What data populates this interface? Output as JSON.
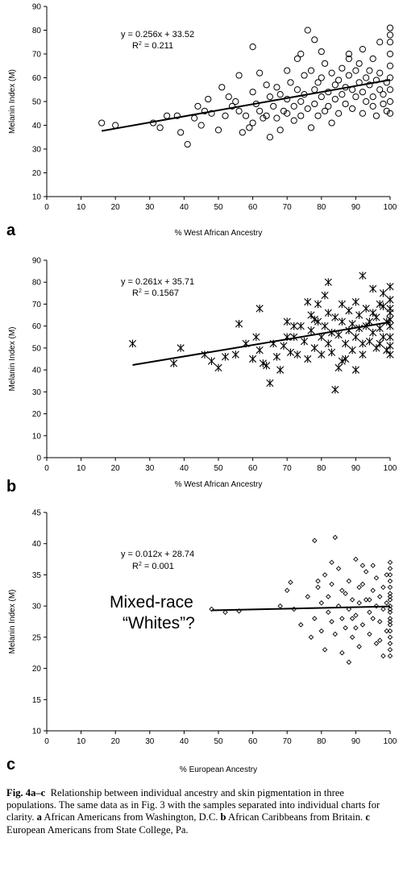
{
  "caption": {
    "figure_label": "Fig. 4a–c",
    "text_1": "Relationship between individual ancestry and skin pigmentation in three populations. The same data as in Fig. 3 with the samples separated into individual charts for clarity. ",
    "a_label": "a",
    "a_text": "African Americans from Washington, D.C. ",
    "b_label": "b",
    "b_text": "African Caribbeans from Britain. ",
    "c_label": "c",
    "c_text": "European Americans from State College, Pa."
  },
  "chart_data": [
    {
      "panel": "a",
      "type": "scatter",
      "marker": "circle",
      "xlabel": "% West African Ancestry",
      "ylabel": "Melanin Index (M)",
      "xlim": [
        0,
        100
      ],
      "ylim": [
        10,
        90
      ],
      "xticks": [
        0,
        10,
        20,
        30,
        40,
        50,
        60,
        70,
        80,
        90,
        100
      ],
      "yticks": [
        10,
        20,
        30,
        40,
        50,
        60,
        70,
        80,
        90
      ],
      "equation": "y = 0.256x + 33.52",
      "r2_prefix": "R",
      "r2_sup": "2",
      "r2_value": " = 0.211",
      "trend": {
        "slope": 0.256,
        "intercept": 33.52,
        "x_range": [
          16,
          100
        ]
      },
      "points": [
        [
          16,
          41
        ],
        [
          20,
          40
        ],
        [
          31,
          41
        ],
        [
          33,
          39
        ],
        [
          35,
          44
        ],
        [
          38,
          44
        ],
        [
          39,
          37
        ],
        [
          41,
          32
        ],
        [
          43,
          43
        ],
        [
          44,
          48
        ],
        [
          45,
          40
        ],
        [
          46,
          46
        ],
        [
          47,
          51
        ],
        [
          48,
          45
        ],
        [
          50,
          38
        ],
        [
          51,
          56
        ],
        [
          52,
          44
        ],
        [
          53,
          52
        ],
        [
          54,
          48
        ],
        [
          55,
          50
        ],
        [
          56,
          46
        ],
        [
          57,
          37
        ],
        [
          58,
          44
        ],
        [
          59,
          39
        ],
        [
          60,
          54
        ],
        [
          60,
          41
        ],
        [
          61,
          49
        ],
        [
          62,
          46
        ],
        [
          63,
          43
        ],
        [
          64,
          57
        ],
        [
          64,
          44
        ],
        [
          65,
          52
        ],
        [
          66,
          48
        ],
        [
          67,
          56
        ],
        [
          67,
          43
        ],
        [
          68,
          53
        ],
        [
          69,
          46
        ],
        [
          70,
          51
        ],
        [
          70,
          45
        ],
        [
          71,
          58
        ],
        [
          72,
          48
        ],
        [
          72,
          42
        ],
        [
          73,
          55
        ],
        [
          73,
          68
        ],
        [
          74,
          50
        ],
        [
          74,
          44
        ],
        [
          75,
          61
        ],
        [
          75,
          53
        ],
        [
          76,
          47
        ],
        [
          77,
          63
        ],
        [
          77,
          39
        ],
        [
          78,
          55
        ],
        [
          78,
          49
        ],
        [
          79,
          58
        ],
        [
          79,
          44
        ],
        [
          80,
          52
        ],
        [
          80,
          60
        ],
        [
          81,
          46
        ],
        [
          81,
          66
        ],
        [
          82,
          54
        ],
        [
          82,
          48
        ],
        [
          83,
          62
        ],
        [
          83,
          41
        ],
        [
          84,
          57
        ],
        [
          84,
          51
        ],
        [
          85,
          59
        ],
        [
          85,
          45
        ],
        [
          86,
          64
        ],
        [
          86,
          53
        ],
        [
          87,
          56
        ],
        [
          87,
          49
        ],
        [
          88,
          61
        ],
        [
          88,
          68
        ],
        [
          89,
          55
        ],
        [
          89,
          47
        ],
        [
          90,
          63
        ],
        [
          90,
          52
        ],
        [
          91,
          58
        ],
        [
          91,
          66
        ],
        [
          92,
          54
        ],
        [
          92,
          45
        ],
        [
          93,
          60
        ],
        [
          93,
          50
        ],
        [
          94,
          57
        ],
        [
          94,
          63
        ],
        [
          95,
          52
        ],
        [
          95,
          48
        ],
        [
          96,
          59
        ],
        [
          96,
          44
        ],
        [
          97,
          55
        ],
        [
          97,
          62
        ],
        [
          98,
          53
        ],
        [
          98,
          49
        ],
        [
          99,
          58
        ],
        [
          99,
          46
        ],
        [
          100,
          60
        ],
        [
          100,
          55
        ],
        [
          100,
          65
        ],
        [
          100,
          50
        ],
        [
          100,
          70
        ],
        [
          100,
          45
        ],
        [
          100,
          75
        ],
        [
          100,
          81
        ],
        [
          60,
          73
        ],
        [
          68,
          38
        ],
        [
          76,
          80
        ],
        [
          78,
          76
        ],
        [
          62,
          62
        ],
        [
          56,
          61
        ],
        [
          65,
          35
        ],
        [
          70,
          63
        ],
        [
          74,
          70
        ],
        [
          80,
          71
        ],
        [
          88,
          70
        ],
        [
          92,
          72
        ],
        [
          95,
          68
        ],
        [
          97,
          75
        ],
        [
          100,
          78
        ]
      ]
    },
    {
      "panel": "b",
      "type": "scatter",
      "marker": "asterisk",
      "xlabel": "% West African Ancestry",
      "ylabel": "Melanin Index (M)",
      "xlim": [
        0,
        100
      ],
      "ylim": [
        0,
        90
      ],
      "xticks": [
        0,
        10,
        20,
        30,
        40,
        50,
        60,
        70,
        80,
        90,
        100
      ],
      "yticks": [
        0,
        10,
        20,
        30,
        40,
        50,
        60,
        70,
        80,
        90
      ],
      "equation": "y = 0.261x + 35.71",
      "r2_prefix": "R",
      "r2_sup": "2",
      "r2_value": " = 0.1567",
      "trend": {
        "slope": 0.261,
        "intercept": 35.71,
        "x_range": [
          25,
          100
        ]
      },
      "points": [
        [
          25,
          52
        ],
        [
          37,
          43
        ],
        [
          39,
          50
        ],
        [
          46,
          47
        ],
        [
          48,
          44
        ],
        [
          50,
          41
        ],
        [
          52,
          46
        ],
        [
          55,
          47
        ],
        [
          56,
          61
        ],
        [
          58,
          52
        ],
        [
          60,
          45
        ],
        [
          61,
          55
        ],
        [
          62,
          68
        ],
        [
          62,
          49
        ],
        [
          63,
          43
        ],
        [
          64,
          42
        ],
        [
          65,
          34
        ],
        [
          66,
          52
        ],
        [
          67,
          46
        ],
        [
          68,
          40
        ],
        [
          69,
          51
        ],
        [
          70,
          62
        ],
        [
          71,
          48
        ],
        [
          72,
          55
        ],
        [
          73,
          47
        ],
        [
          74,
          60
        ],
        [
          75,
          53
        ],
        [
          76,
          45
        ],
        [
          77,
          65
        ],
        [
          77,
          58
        ],
        [
          78,
          50
        ],
        [
          79,
          70
        ],
        [
          79,
          62
        ],
        [
          80,
          55
        ],
        [
          80,
          47
        ],
        [
          81,
          74
        ],
        [
          81,
          60
        ],
        [
          82,
          52
        ],
        [
          82,
          66
        ],
        [
          83,
          57
        ],
        [
          83,
          48
        ],
        [
          84,
          64
        ],
        [
          84,
          31
        ],
        [
          85,
          56
        ],
        [
          85,
          41
        ],
        [
          86,
          62
        ],
        [
          86,
          70
        ],
        [
          87,
          52
        ],
        [
          87,
          45
        ],
        [
          88,
          67
        ],
        [
          88,
          58
        ],
        [
          89,
          61
        ],
        [
          89,
          49
        ],
        [
          90,
          71
        ],
        [
          90,
          55
        ],
        [
          91,
          65
        ],
        [
          91,
          59
        ],
        [
          92,
          83
        ],
        [
          92,
          47
        ],
        [
          93,
          60
        ],
        [
          93,
          68
        ],
        [
          94,
          53
        ],
        [
          94,
          62
        ],
        [
          95,
          77
        ],
        [
          95,
          57
        ],
        [
          96,
          64
        ],
        [
          96,
          50
        ],
        [
          97,
          70
        ],
        [
          97,
          59
        ],
        [
          98,
          55
        ],
        [
          98,
          75
        ],
        [
          99,
          62
        ],
        [
          99,
          49
        ],
        [
          100,
          78
        ],
        [
          100,
          72
        ],
        [
          100,
          66
        ],
        [
          100,
          60
        ],
        [
          100,
          55
        ],
        [
          100,
          51
        ],
        [
          100,
          47
        ],
        [
          100,
          68
        ],
        [
          100,
          63
        ],
        [
          82,
          80
        ],
        [
          76,
          71
        ],
        [
          70,
          55
        ],
        [
          72,
          60
        ],
        [
          78,
          63
        ],
        [
          86,
          44
        ],
        [
          90,
          40
        ],
        [
          92,
          52
        ],
        [
          95,
          66
        ],
        [
          97,
          52
        ],
        [
          98,
          69
        ]
      ]
    },
    {
      "panel": "c",
      "type": "scatter",
      "marker": "diamond",
      "xlabel": "% European Ancestry",
      "ylabel": "Melanin Index (M)",
      "xlim": [
        0,
        100
      ],
      "ylim": [
        10,
        45
      ],
      "xticks": [
        0,
        10,
        20,
        30,
        40,
        50,
        60,
        70,
        80,
        90,
        100
      ],
      "yticks": [
        10,
        15,
        20,
        25,
        30,
        35,
        40,
        45
      ],
      "equation": "y = 0.012x + 28.74",
      "r2_prefix": "R",
      "r2_sup": "2",
      "r2_value": " = 0.001",
      "annotation_line1": "Mixed-race",
      "annotation_line2": "“Whites”?",
      "trend": {
        "slope": 0.012,
        "intercept": 28.74,
        "x_range": [
          48,
          100
        ]
      },
      "points": [
        [
          48,
          29.5
        ],
        [
          52,
          29.0
        ],
        [
          56,
          29.2
        ],
        [
          68,
          30.0
        ],
        [
          70,
          32.5
        ],
        [
          71,
          33.8
        ],
        [
          72,
          29.5
        ],
        [
          74,
          27.0
        ],
        [
          76,
          31.5
        ],
        [
          77,
          25.0
        ],
        [
          78,
          40.5
        ],
        [
          78,
          28.0
        ],
        [
          79,
          33.0
        ],
        [
          80,
          30.5
        ],
        [
          80,
          26.0
        ],
        [
          81,
          35.0
        ],
        [
          81,
          23.0
        ],
        [
          82,
          29.0
        ],
        [
          82,
          31.5
        ],
        [
          83,
          27.5
        ],
        [
          83,
          33.5
        ],
        [
          84,
          41.0
        ],
        [
          84,
          25.5
        ],
        [
          85,
          30.0
        ],
        [
          85,
          36.0
        ],
        [
          86,
          28.0
        ],
        [
          86,
          22.5
        ],
        [
          87,
          32.0
        ],
        [
          87,
          26.5
        ],
        [
          88,
          34.0
        ],
        [
          88,
          29.5
        ],
        [
          88,
          21.0
        ],
        [
          89,
          31.0
        ],
        [
          89,
          25.0
        ],
        [
          90,
          37.5
        ],
        [
          90,
          28.5
        ],
        [
          91,
          30.5
        ],
        [
          91,
          23.5
        ],
        [
          92,
          33.5
        ],
        [
          92,
          27.0
        ],
        [
          93,
          31.0
        ],
        [
          93,
          35.5
        ],
        [
          94,
          29.0
        ],
        [
          94,
          25.5
        ],
        [
          95,
          32.5
        ],
        [
          95,
          28.0
        ],
        [
          96,
          30.0
        ],
        [
          96,
          34.5
        ],
        [
          96,
          24.0
        ],
        [
          97,
          31.5
        ],
        [
          97,
          27.5
        ],
        [
          98,
          29.5
        ],
        [
          98,
          33.0
        ],
        [
          98,
          22.0
        ],
        [
          99,
          30.5
        ],
        [
          99,
          26.0
        ],
        [
          99,
          35.0
        ],
        [
          100,
          37.0
        ],
        [
          100,
          36.0
        ],
        [
          100,
          35.0
        ],
        [
          100,
          34.0
        ],
        [
          100,
          33.0
        ],
        [
          100,
          32.0
        ],
        [
          100,
          31.0
        ],
        [
          100,
          30.0
        ],
        [
          100,
          29.0
        ],
        [
          100,
          28.0
        ],
        [
          100,
          27.0
        ],
        [
          100,
          26.0
        ],
        [
          100,
          25.0
        ],
        [
          100,
          24.0
        ],
        [
          100,
          23.0
        ],
        [
          100,
          22.0
        ],
        [
          100,
          31.5
        ],
        [
          100,
          29.5
        ],
        [
          100,
          27.5
        ],
        [
          79,
          34.0
        ],
        [
          83,
          37.0
        ],
        [
          86,
          32.5
        ],
        [
          90,
          26.5
        ],
        [
          92,
          36.5
        ],
        [
          94,
          31.0
        ],
        [
          97,
          24.5
        ],
        [
          95,
          36.5
        ],
        [
          89,
          28.0
        ],
        [
          91,
          33.0
        ]
      ]
    }
  ]
}
